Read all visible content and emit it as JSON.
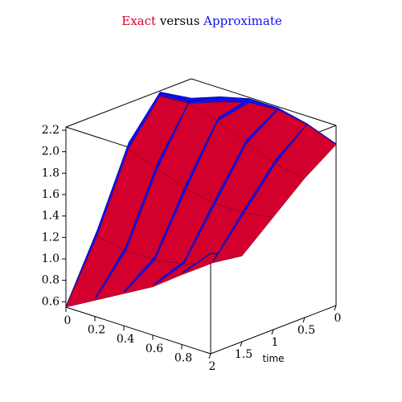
{
  "chart_data": {
    "type": "surface",
    "title_word": "versus",
    "x": [
      0,
      0.2,
      0.4,
      0.6,
      0.8,
      1
    ],
    "t": [
      0,
      0.5,
      1,
      1.5,
      2
    ],
    "series": [
      {
        "name": "Exact",
        "color": "#d3002e",
        "values": [
          [
            2.0,
            2.1,
            2.18,
            2.2,
            2.15,
            2.05
          ],
          [
            2.18,
            2.2,
            2.12,
            2.0,
            1.9,
            1.85
          ],
          [
            1.8,
            1.7,
            1.6,
            1.55,
            1.55,
            1.6
          ],
          [
            1.1,
            1.05,
            1.05,
            1.1,
            1.2,
            1.35
          ],
          [
            0.55,
            0.7,
            0.85,
            1.0,
            1.2,
            1.48
          ]
        ]
      },
      {
        "name": "Approximate",
        "color": "#1010ee",
        "values": [
          [
            2.05,
            2.15,
            2.22,
            2.22,
            2.16,
            2.06
          ],
          [
            2.22,
            2.22,
            2.15,
            2.04,
            1.94,
            1.88
          ],
          [
            1.86,
            1.76,
            1.66,
            1.6,
            1.59,
            1.63
          ],
          [
            1.16,
            1.1,
            1.09,
            1.13,
            1.22,
            1.37
          ],
          [
            0.56,
            0.72,
            0.87,
            1.02,
            1.22,
            1.49
          ]
        ]
      }
    ],
    "xlim": [
      0,
      1
    ],
    "tlim": [
      0,
      2
    ],
    "zlim": [
      0.55,
      2.23
    ],
    "xticks": [
      0,
      0.2,
      0.4,
      0.6,
      0.8
    ],
    "tticks": [
      0,
      0.5,
      1,
      1.5,
      2
    ],
    "zticks": [
      0.6,
      0.8,
      {
        "value": 1,
        "label": "1.0"
      },
      1.2,
      1.4,
      1.6,
      1.8,
      {
        "value": 2,
        "label": "2.0"
      },
      2.2
    ],
    "tlabel": "time"
  }
}
